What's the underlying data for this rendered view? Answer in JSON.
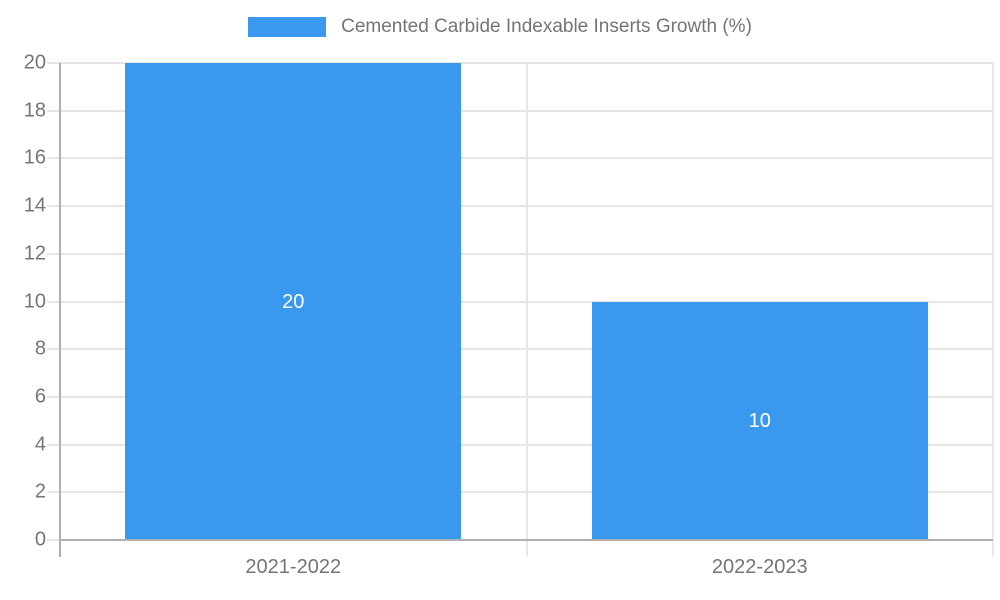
{
  "chart_data": {
    "type": "bar",
    "title": "",
    "categories": [
      "2021-2022",
      "2022-2023"
    ],
    "series": [
      {
        "name": "Cemented Carbide Indexable Inserts Growth (%)",
        "values": [
          20,
          10
        ]
      }
    ],
    "bar_value_labels": [
      "20",
      "10"
    ],
    "ylim": [
      0,
      20
    ],
    "yticks": [
      0,
      2,
      4,
      6,
      8,
      10,
      12,
      14,
      16,
      18,
      20
    ],
    "grid": true,
    "legend_position": "top-center",
    "colors": {
      "bar": "#3a99ee",
      "grid": "#e6e6e6",
      "axis": "#b0b0b0",
      "plot_border": "#e8e8e8",
      "tick_text": "#757575",
      "value_label_text": "#ffffff"
    }
  }
}
